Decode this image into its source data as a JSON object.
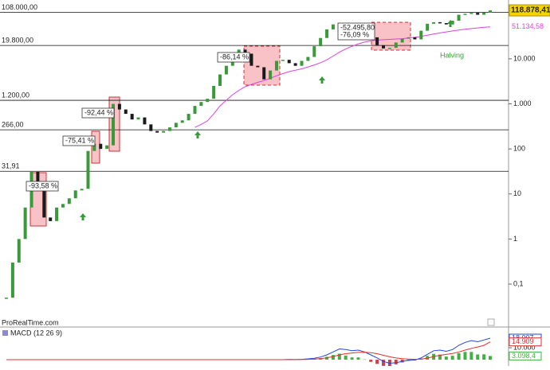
{
  "chart_data": {
    "type": "candlestick",
    "log_scale": true,
    "ylim": [
      0.0174,
      202000
    ],
    "yticks": [
      {
        "value": 10000,
        "label": "10.000"
      },
      {
        "value": 1000,
        "label": "1.000"
      },
      100,
      10,
      1,
      {
        "value": 0.1,
        "label": "0,1"
      }
    ],
    "up_color": "#3a9a3a",
    "down_color": "#1a1a1a",
    "values": [
      0.05,
      0.3,
      1,
      5,
      31,
      15,
      3,
      2.5,
      5,
      6,
      8,
      12,
      13,
      90,
      130,
      100,
      120,
      1000,
      750,
      600,
      450,
      500,
      350,
      250,
      230,
      250,
      300,
      380,
      430,
      600,
      900,
      1100,
      1300,
      2500,
      4500,
      7000,
      10000,
      16000,
      13000,
      7000,
      6500,
      3500,
      5500,
      9000,
      9500,
      8000,
      7000,
      9000,
      11000,
      19000,
      29000,
      45000,
      58000,
      40000,
      45000,
      60000,
      47000,
      37000,
      30000,
      20000,
      17000,
      17500,
      23000,
      28000,
      30000,
      27000,
      42000,
      60000,
      65000,
      62000,
      58000,
      70000,
      95000,
      100000,
      105000,
      95000,
      108000,
      118878.41
    ],
    "last_label": "118.878,41",
    "moving_average": {
      "color": "#e040e0",
      "last_label": "51.134,58",
      "values": [
        null,
        null,
        null,
        null,
        null,
        null,
        null,
        null,
        null,
        null,
        null,
        null,
        null,
        null,
        null,
        null,
        null,
        null,
        null,
        null,
        null,
        null,
        null,
        null,
        null,
        null,
        null,
        null,
        null,
        null,
        300,
        350,
        420,
        600,
        900,
        1200,
        1600,
        2000,
        2400,
        2700,
        3000,
        3300,
        3700,
        4200,
        4700,
        5200,
        5600,
        6000,
        6600,
        7300,
        8200,
        9500,
        11500,
        14000,
        16500,
        19000,
        21500,
        23500,
        25000,
        26000,
        26500,
        27000,
        27500,
        28000,
        29000,
        30000,
        31500,
        33500,
        35500,
        37500,
        39500,
        41500,
        43500,
        45500,
        47000,
        48500,
        50000,
        51134.58
      ]
    },
    "levels": [
      {
        "value": 108000,
        "label": "108.000,00"
      },
      {
        "value": 19800,
        "label": "19.800,00"
      },
      {
        "value": 1200,
        "label": "1.200,00"
      },
      {
        "value": 266,
        "label": "266,00"
      },
      {
        "value": 31.91,
        "label": "31,91"
      }
    ],
    "annotations": [
      "-93,58 %",
      "-75,41 %",
      "-92,44 %",
      "-86,14 %",
      "-52.495,80",
      "-76,09 %",
      "Halving"
    ],
    "source": "ProRealTime.com",
    "macd": {
      "title": "MACD (12 26 9)",
      "ylim": [
        -5300,
        26000
      ],
      "yticks": [
        {
          "value": 10000,
          "label": "10.000"
        }
      ],
      "macd_color": "#2244dd",
      "signal_color": "#e03030",
      "hist_up_color": "#44b044",
      "hist_down_color": "#d04040",
      "macd_label": "18.007",
      "signal_label": "14.909",
      "hist_label": "3.098,4",
      "macd_values": [
        0,
        0,
        0,
        0,
        0,
        0,
        0,
        0,
        0,
        0,
        0,
        0,
        0,
        0,
        0,
        0,
        0,
        0,
        0,
        0,
        0,
        0,
        0,
        0,
        0,
        0,
        0,
        0,
        0,
        0,
        0,
        0,
        0,
        0,
        0,
        0,
        0,
        0,
        0,
        0,
        0,
        0,
        0,
        0,
        0,
        200,
        100,
        300,
        700,
        1200,
        2200,
        4000,
        6500,
        9000,
        8500,
        7500,
        8000,
        6500,
        4000,
        1500,
        -1500,
        -3000,
        -2500,
        -1500,
        -500,
        -300,
        1500,
        4500,
        7500,
        8000,
        7000,
        8500,
        12000,
        14500,
        16000,
        15000,
        16500,
        18007
      ],
      "signal_values": [
        0,
        0,
        0,
        0,
        0,
        0,
        0,
        0,
        0,
        0,
        0,
        0,
        0,
        0,
        0,
        0,
        0,
        0,
        0,
        0,
        0,
        0,
        0,
        0,
        0,
        0,
        0,
        0,
        0,
        0,
        0,
        0,
        0,
        0,
        0,
        0,
        0,
        0,
        0,
        0,
        0,
        0,
        0,
        0,
        0,
        100,
        100,
        150,
        300,
        500,
        900,
        1600,
        2600,
        4000,
        5000,
        5600,
        6100,
        6200,
        5800,
        5000,
        3700,
        2400,
        1400,
        800,
        500,
        300,
        500,
        1300,
        2600,
        3700,
        4400,
        5200,
        6500,
        8000,
        9500,
        10600,
        12000,
        14909
      ],
      "hist_values": [
        null,
        null,
        null,
        null,
        null,
        null,
        null,
        null,
        null,
        null,
        null,
        null,
        null,
        null,
        null,
        null,
        null,
        null,
        null,
        null,
        null,
        null,
        null,
        null,
        null,
        null,
        null,
        null,
        null,
        null,
        null,
        null,
        null,
        null,
        null,
        null,
        null,
        null,
        null,
        null,
        null,
        null,
        null,
        null,
        null,
        100,
        0,
        150,
        400,
        700,
        1300,
        2400,
        3900,
        5000,
        3500,
        1900,
        1900,
        300,
        -1800,
        -3500,
        -5200,
        -5400,
        -3900,
        -2300,
        -1000,
        -600,
        1000,
        3200,
        4900,
        4300,
        2600,
        3300,
        5500,
        6500,
        6500,
        4400,
        4500,
        3098.4
      ]
    }
  }
}
